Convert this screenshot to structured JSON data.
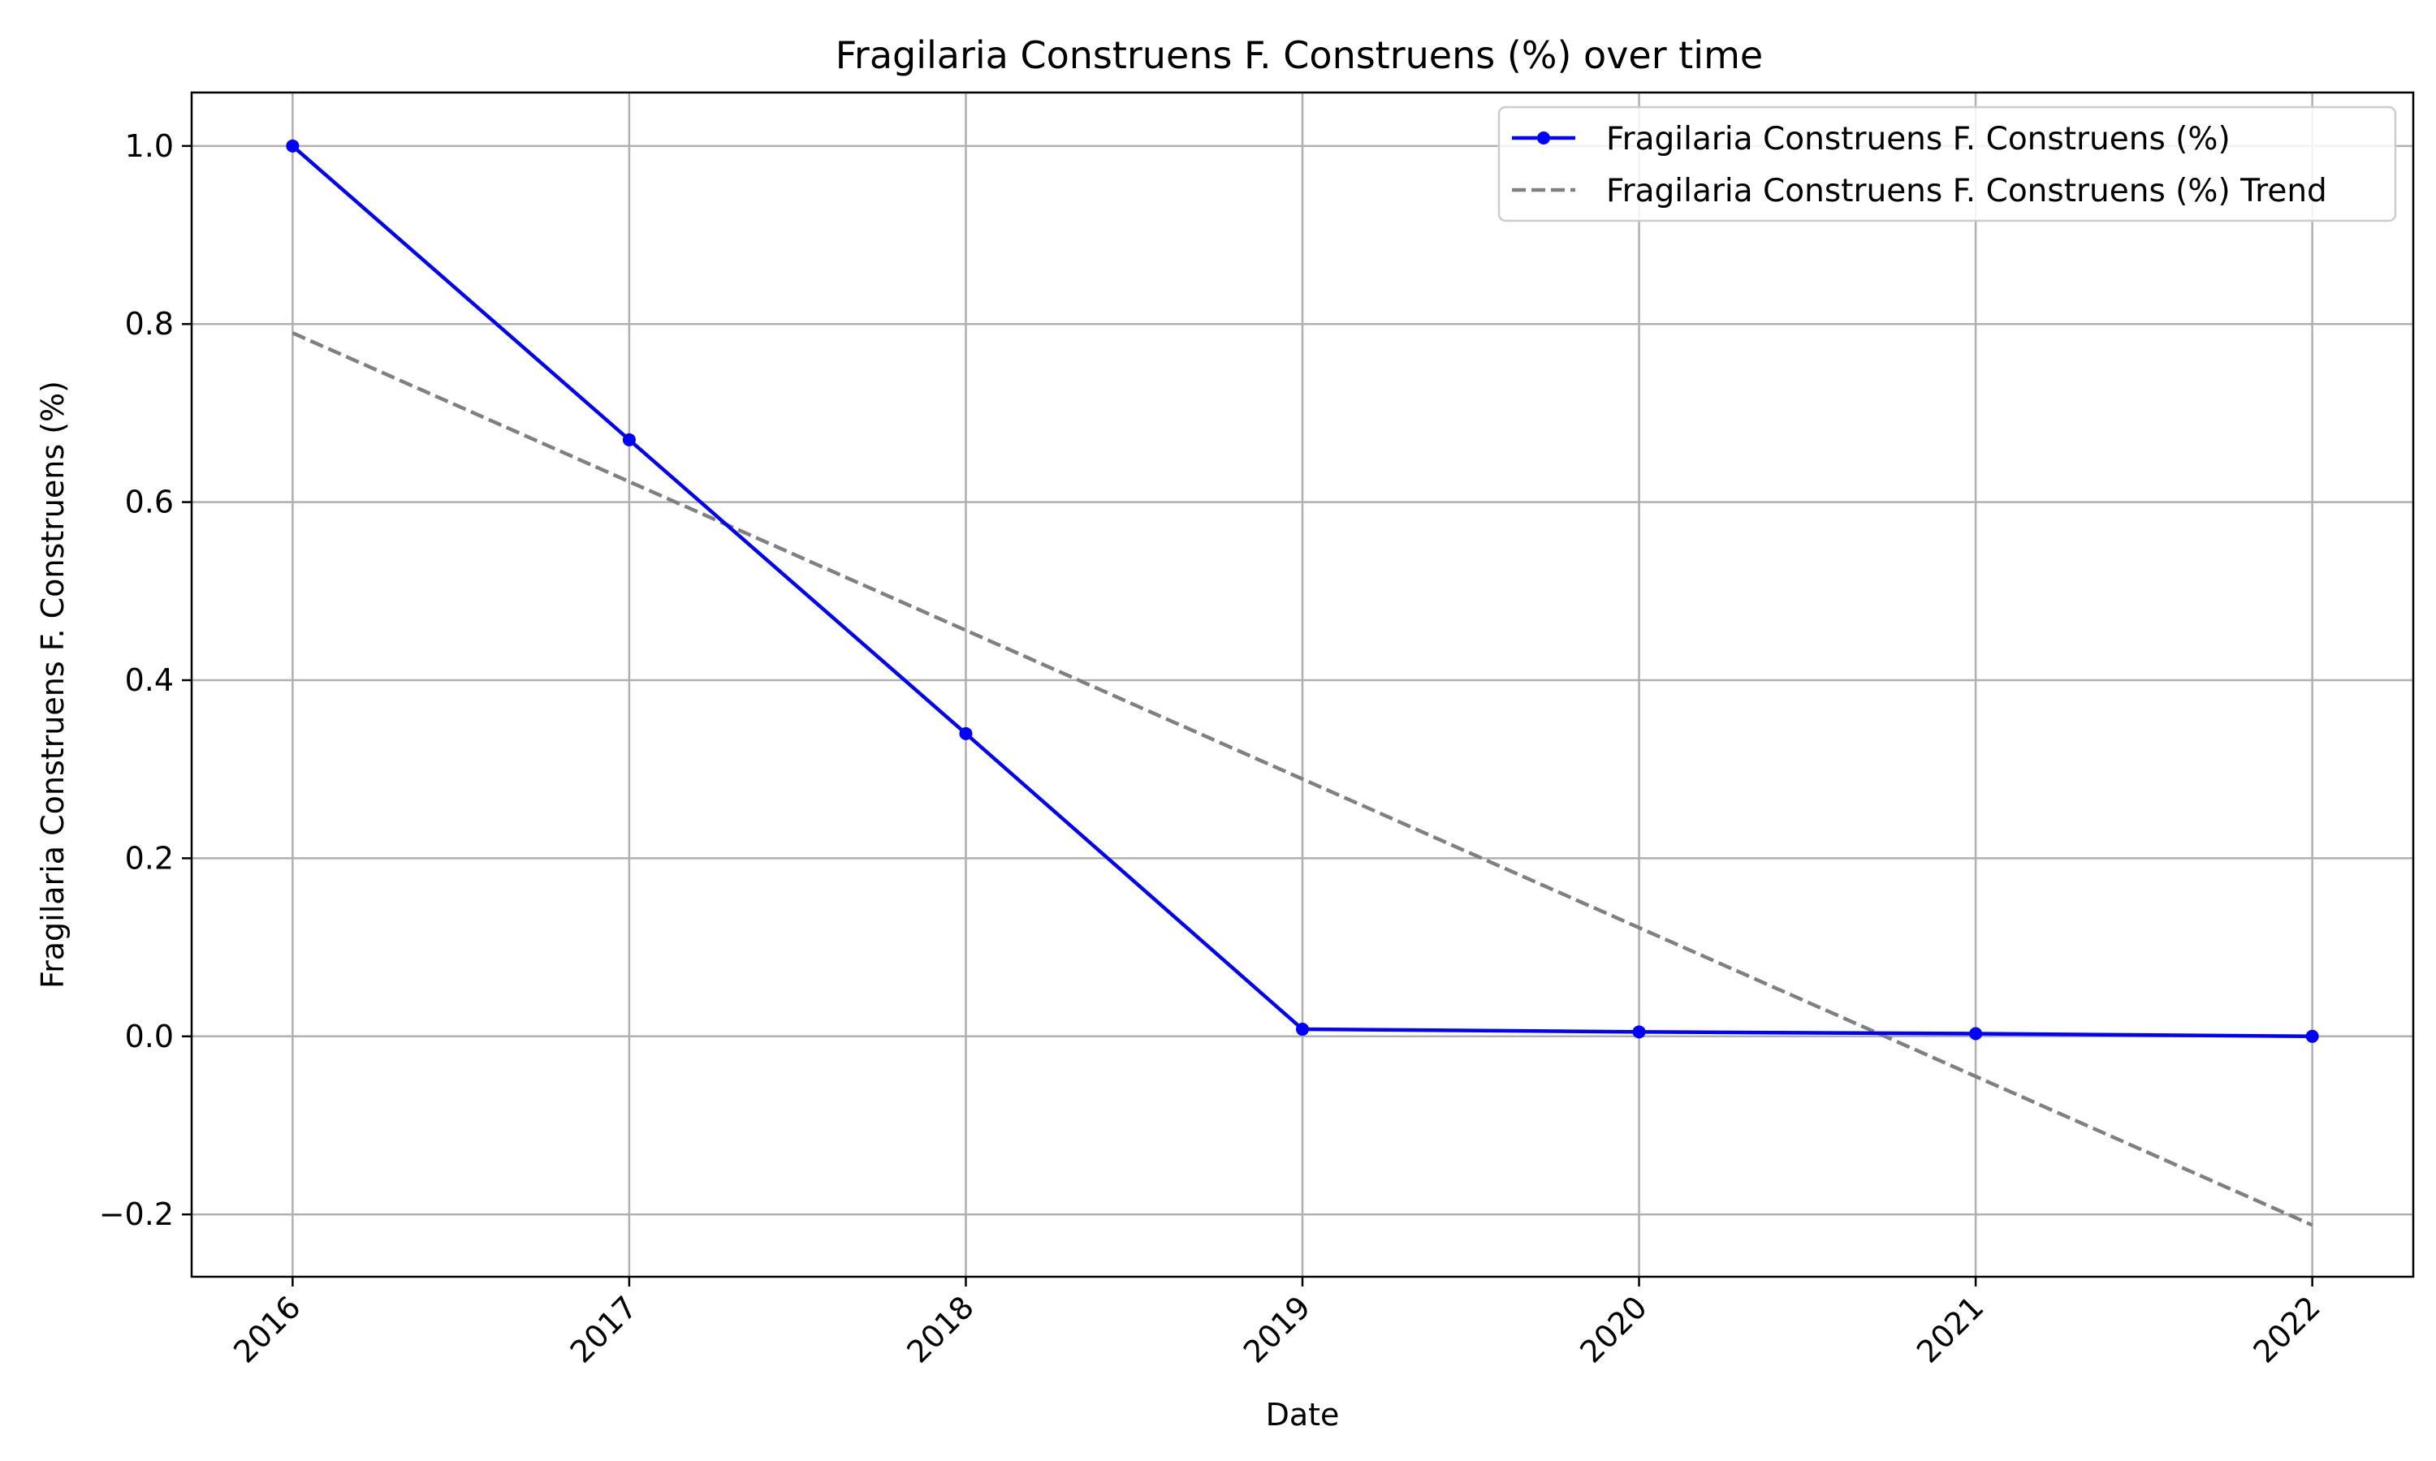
{
  "chart_data": {
    "type": "line",
    "title": "Fragilaria Construens F. Construens (%) over time",
    "xlabel": "Date",
    "ylabel": "Fragilaria Construens F. Construens (%)",
    "x": [
      "2016",
      "2017",
      "2018",
      "2019",
      "2020",
      "2021",
      "2022"
    ],
    "xlim": [
      2015.7,
      2022.3
    ],
    "ylim": [
      -0.27,
      1.06
    ],
    "yticks": [
      -0.2,
      0.0,
      0.2,
      0.4,
      0.6,
      0.8,
      1.0
    ],
    "ytick_labels": [
      "−0.2",
      "0.0",
      "0.2",
      "0.4",
      "0.6",
      "0.8",
      "1.0"
    ],
    "grid": true,
    "legend_position": "top-right",
    "series": [
      {
        "name": "Fragilaria Construens F. Construens (%)",
        "values": [
          1.0,
          0.67,
          0.34,
          0.008,
          0.005,
          0.003,
          0.0
        ],
        "color": "#0000ff",
        "style": "solid",
        "marker": "circle"
      },
      {
        "name": "Fragilaria Construens F. Construens (%) Trend",
        "values": [
          0.79,
          0.623,
          0.456,
          0.289,
          0.122,
          -0.045,
          -0.212
        ],
        "color": "#808080",
        "style": "dashed",
        "marker": "none"
      }
    ]
  }
}
